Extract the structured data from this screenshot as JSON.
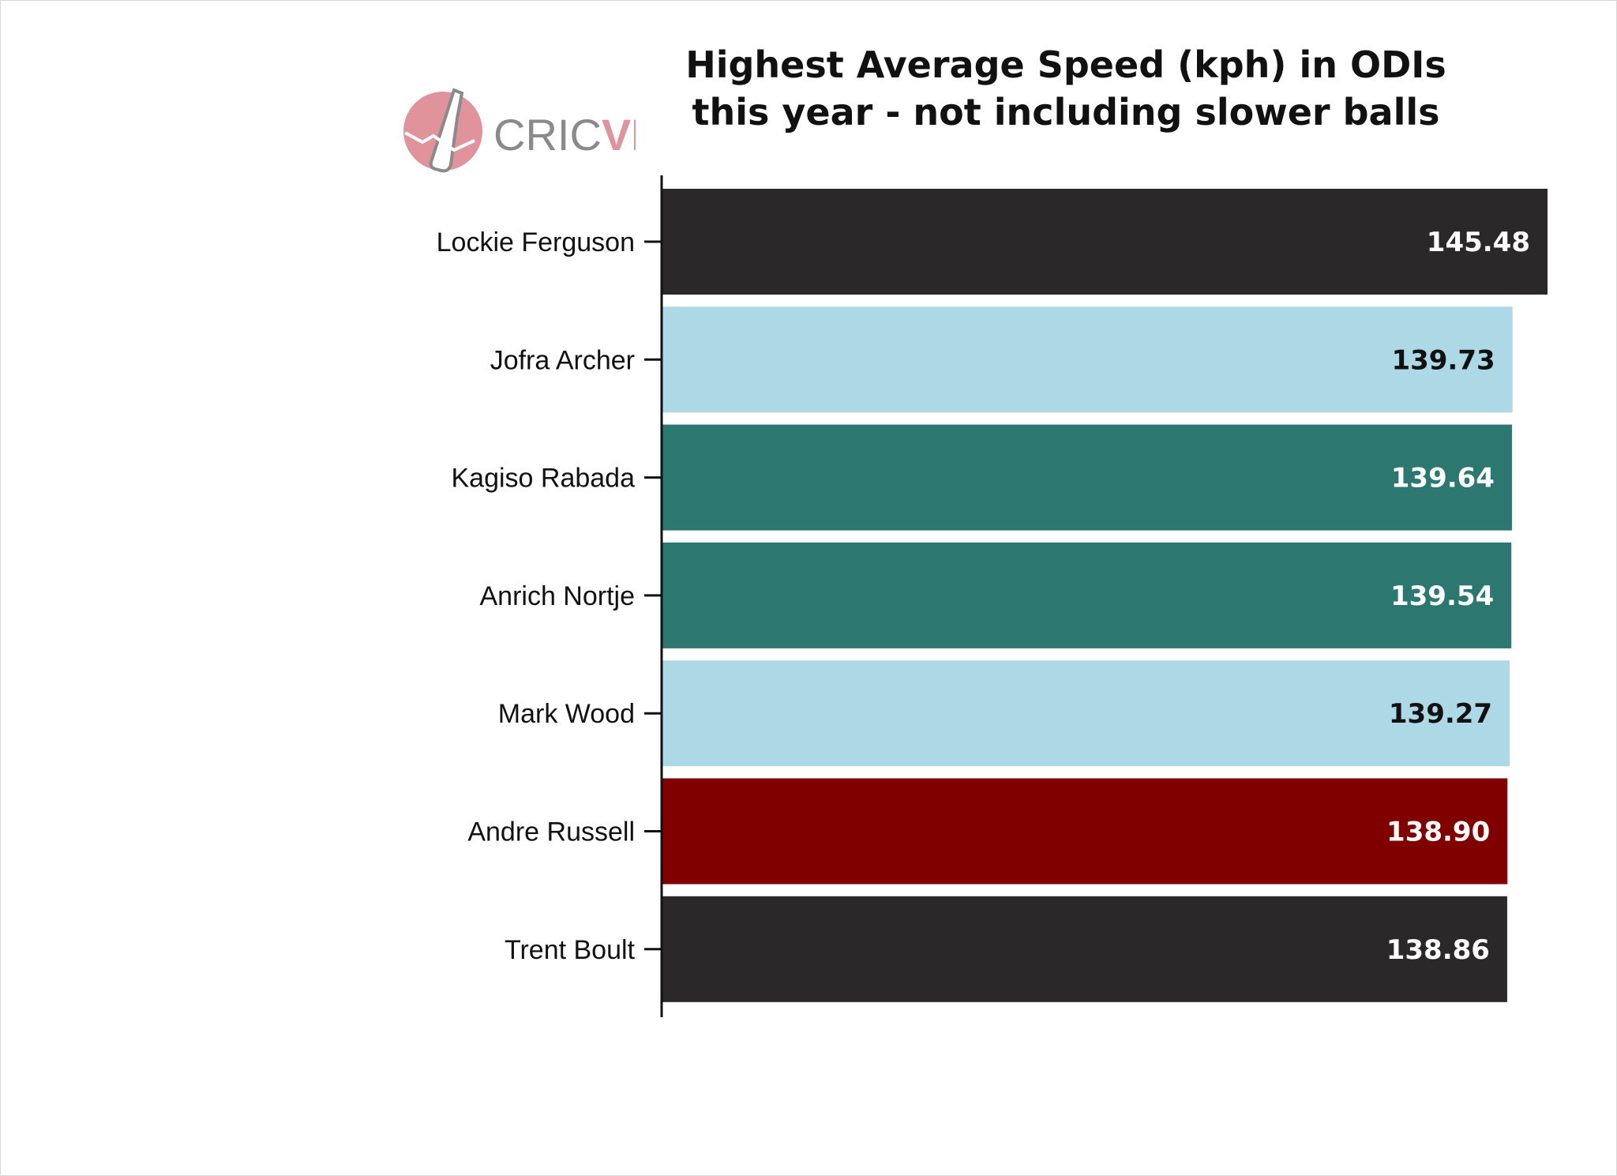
{
  "title_line1": "Highest Average Speed (kph) in ODIs",
  "title_line2": "this year - not including slower balls",
  "logo": {
    "text_left": "CRIC",
    "text_right": "VIZ",
    "color_grey": "#8a8a8a",
    "color_pink": "#e0939b"
  },
  "chart_data": {
    "type": "bar",
    "orientation": "horizontal",
    "title": "Highest Average Speed (kph) in ODIs this year - not including slower balls",
    "categories": [
      "Lockie Ferguson",
      "Jofra Archer",
      "Kagiso Rabada",
      "Anrich Nortje",
      "Mark Wood",
      "Andre Russell",
      "Trent Boult"
    ],
    "values": [
      145.48,
      139.73,
      139.64,
      139.54,
      139.27,
      138.9,
      138.86
    ],
    "labels": [
      "145.48",
      "139.73",
      "139.64",
      "139.54",
      "139.27",
      "138.90",
      "138.86"
    ],
    "colors": [
      "#2a2829",
      "#add8e6",
      "#2c7770",
      "#2c7770",
      "#add8e6",
      "#800000",
      "#2a2829"
    ],
    "label_colors": [
      "#ffffff",
      "#111111",
      "#ffffff",
      "#ffffff",
      "#111111",
      "#ffffff",
      "#ffffff"
    ],
    "xlim": [
      0,
      145.48
    ],
    "xaxis_visible": false,
    "grid": false
  }
}
